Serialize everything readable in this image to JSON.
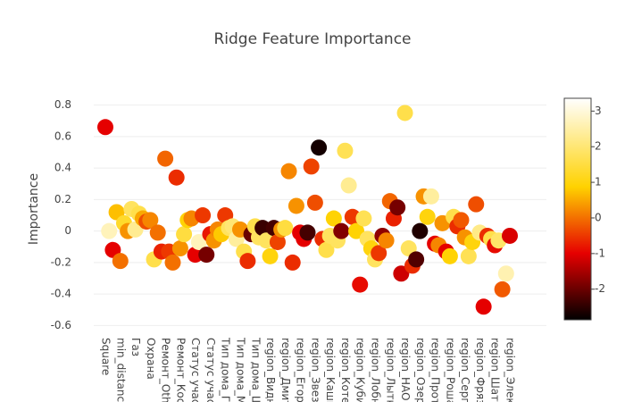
{
  "chart_data": {
    "type": "scatter",
    "title": "Ridge Feature Importance",
    "y_label": "Importance",
    "categories": [
      "Square",
      null,
      null,
      null,
      "min_distance",
      null,
      null,
      null,
      "Газ",
      null,
      null,
      null,
      "Охрана",
      null,
      null,
      null,
      "Ремонт_Othe",
      null,
      null,
      null,
      "Ремонт_Косм",
      null,
      null,
      null,
      "Статус участ",
      null,
      null,
      null,
      "Статус участ",
      null,
      null,
      null,
      "Тип дома_Га",
      null,
      null,
      null,
      "Тип дома_Мо",
      null,
      null,
      null,
      "Тип дома_Щ",
      null,
      null,
      null,
      "region_Видн",
      null,
      null,
      null,
      "region_Дмитр",
      null,
      null,
      null,
      "region_Егорь",
      null,
      null,
      null,
      "region_Звезд",
      null,
      null,
      null,
      "region_Кашир",
      null,
      null,
      null,
      "region_Котел",
      null,
      null,
      null,
      "region_Кубин",
      null,
      null,
      null,
      "region_Лобня",
      null,
      null,
      null,
      "region_Лытка",
      null,
      null,
      null,
      "region_НАО (",
      null,
      null,
      null,
      "region_Озер",
      null,
      null,
      null,
      "region_Прото",
      null,
      null,
      null,
      "region_Роша",
      null,
      null,
      null,
      "region_Серп",
      null,
      null,
      null,
      "region_Фряз",
      null,
      null,
      null,
      "region_Шату",
      null,
      null,
      null,
      "region_Элект"
    ],
    "values": [
      0.66,
      0.0,
      -0.12,
      0.12,
      -0.19,
      0.05,
      0.0,
      0.14,
      0.01,
      0.11,
      0.08,
      0.06,
      0.07,
      -0.18,
      -0.01,
      -0.13,
      0.46,
      -0.13,
      -0.2,
      0.34,
      -0.11,
      -0.02,
      0.07,
      0.08,
      -0.15,
      -0.07,
      0.1,
      -0.15,
      -0.02,
      -0.06,
      0.01,
      -0.02,
      0.1,
      0.02,
      0.03,
      -0.05,
      0.01,
      -0.13,
      -0.19,
      -0.02,
      0.03,
      -0.04,
      0.02,
      -0.06,
      -0.16,
      0.02,
      -0.07,
      0.01,
      0.02,
      0.38,
      -0.2,
      0.16,
      -0.01,
      -0.05,
      -0.01,
      0.41,
      0.18,
      0.53,
      -0.05,
      -0.12,
      -0.03,
      0.08,
      -0.06,
      0.0,
      0.51,
      0.29,
      0.09,
      0.0,
      -0.34,
      0.08,
      -0.05,
      -0.11,
      -0.18,
      -0.14,
      -0.03,
      -0.06,
      0.19,
      0.08,
      0.15,
      -0.27,
      0.75,
      -0.11,
      -0.22,
      -0.18,
      0.0,
      0.22,
      0.09,
      0.22,
      -0.08,
      -0.09,
      0.05,
      -0.13,
      -0.16,
      0.09,
      0.03,
      0.07,
      -0.04,
      -0.16,
      -0.07,
      0.17,
      -0.01,
      -0.48,
      -0.03,
      -0.05,
      -0.09,
      -0.06,
      -0.37,
      -0.27,
      -0.03
    ],
    "color_values": [
      -1,
      2.7,
      -1,
      0.7,
      0,
      1.3,
      0.3,
      1.8,
      2.3,
      1.6,
      0.5,
      -0.3,
      0.2,
      1.6,
      0,
      -0.7,
      -0.1,
      -0.5,
      0,
      -0.6,
      0.3,
      1.5,
      0.9,
      0.2,
      -1,
      2.7,
      -0.5,
      -1.9,
      -0.8,
      0.3,
      0.2,
      0.8,
      -0.5,
      1.8,
      2,
      2.4,
      0.3,
      1.6,
      -0.6,
      -2,
      1.6,
      1.8,
      -2.4,
      1.8,
      1,
      -2.3,
      -0.4,
      0.3,
      1.5,
      0.2,
      -0.6,
      0.3,
      -1,
      -1,
      -2.3,
      -0.4,
      -0.3,
      -2.7,
      -0.6,
      1.6,
      1.8,
      0.9,
      1.8,
      -1.8,
      1.7,
      2.3,
      -0.5,
      0.9,
      -0.9,
      1.7,
      1.8,
      1,
      1.8,
      -0.5,
      -1.7,
      0.2,
      -0.1,
      -0.7,
      -1.9,
      -1.2,
      1.6,
      1.8,
      -0.6,
      -2.2,
      -2.6,
      0.3,
      1,
      2.4,
      -1,
      0.2,
      0.3,
      -1,
      0.9,
      1.6,
      -0.6,
      -0.2,
      0.3,
      1.7,
      1,
      -0.3,
      2.2,
      -1,
      -0.6,
      1.6,
      -0.9,
      1.9,
      -0.2,
      2.6,
      -1.1
    ],
    "colorscale": [
      [
        0,
        "#000000"
      ],
      [
        0.3,
        "#e60000"
      ],
      [
        0.6,
        "#ffd200"
      ],
      [
        1,
        "#ffffff"
      ]
    ],
    "clim": [
      -2.86,
      3.36
    ],
    "cticks": [
      -2,
      -1,
      0,
      1,
      2,
      3
    ],
    "ylim": [
      -0.66,
      0.9
    ],
    "yticks": [
      -0.6,
      -0.4,
      -0.2,
      0,
      0.2,
      0.4,
      0.6,
      0.8
    ],
    "grid": true
  }
}
